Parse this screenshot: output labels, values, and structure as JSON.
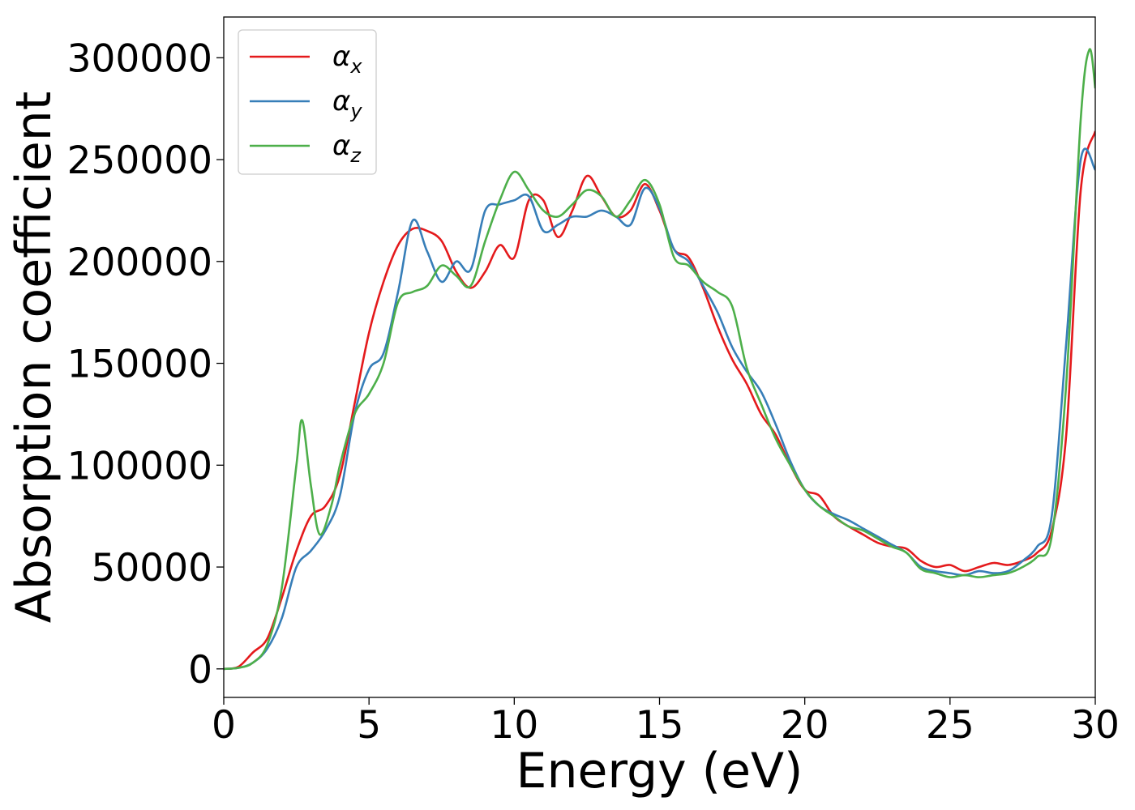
{
  "chart_data": {
    "type": "line",
    "xlabel": "Energy (eV)",
    "ylabel": "Absorption coefficient",
    "xlim": [
      0,
      30
    ],
    "ylim": [
      -14000,
      320000
    ],
    "xticks": [
      0,
      5,
      10,
      15,
      20,
      25,
      30
    ],
    "xtick_labels": [
      "0",
      "5",
      "10",
      "15",
      "20",
      "25",
      "30"
    ],
    "yticks": [
      0,
      50000,
      100000,
      150000,
      200000,
      250000,
      300000
    ],
    "ytick_labels": [
      "0",
      "50000",
      "100000",
      "150000",
      "200000",
      "250000",
      "300000"
    ],
    "grid": false,
    "legend_position": "top-left",
    "series": [
      {
        "name": "αx",
        "name_base": "α",
        "name_sub": "x",
        "color": "#e41a1c",
        "x": [
          0,
          0.5,
          1,
          1.5,
          2,
          2.5,
          3,
          3.5,
          4,
          4.5,
          5,
          5.5,
          6,
          6.5,
          7,
          7.5,
          8,
          8.5,
          9,
          9.5,
          10,
          10.5,
          11,
          11.5,
          12,
          12.5,
          13,
          13.5,
          14,
          14.5,
          15,
          15.5,
          16,
          16.5,
          17,
          17.5,
          18,
          18.5,
          19,
          19.5,
          20,
          20.5,
          21,
          21.5,
          22,
          22.5,
          23,
          23.5,
          24,
          24.5,
          25,
          25.5,
          26,
          26.5,
          27,
          27.5,
          28,
          28.5,
          29,
          29.5,
          30
        ],
        "y": [
          0,
          1000,
          8000,
          15000,
          35000,
          58000,
          75000,
          80000,
          95000,
          130000,
          165000,
          190000,
          208000,
          216000,
          215000,
          210000,
          195000,
          187000,
          195000,
          208000,
          202000,
          230000,
          230000,
          212000,
          225000,
          242000,
          232000,
          222000,
          225000,
          238000,
          225000,
          206000,
          202000,
          187000,
          168000,
          152000,
          140000,
          125000,
          115000,
          100000,
          88000,
          85000,
          75000,
          70000,
          66000,
          62000,
          60000,
          59000,
          53000,
          50000,
          51000,
          48000,
          50000,
          52000,
          51000,
          53000,
          57000,
          68000,
          115000,
          235000,
          264000
        ]
      },
      {
        "name": "αy",
        "name_base": "α",
        "name_sub": "y",
        "color": "#377eb8",
        "x": [
          0,
          0.5,
          1,
          1.5,
          2,
          2.5,
          3,
          3.5,
          4,
          4.5,
          5,
          5.5,
          6,
          6.5,
          7,
          7.5,
          8,
          8.5,
          9,
          9.5,
          10,
          10.5,
          11,
          11.5,
          12,
          12.5,
          13,
          13.5,
          14,
          14.5,
          15,
          15.5,
          16,
          16.5,
          17,
          17.5,
          18,
          18.5,
          19,
          19.5,
          20,
          20.5,
          21,
          21.5,
          22,
          22.5,
          23,
          23.5,
          24,
          24.5,
          25,
          25.5,
          26,
          26.5,
          27,
          27.5,
          28,
          28.5,
          29,
          29.5,
          30
        ],
        "y": [
          0,
          500,
          3000,
          10000,
          25000,
          50000,
          58000,
          68000,
          85000,
          125000,
          147000,
          155000,
          185000,
          220000,
          205000,
          190000,
          200000,
          196000,
          225000,
          228000,
          230000,
          232000,
          215000,
          218000,
          222000,
          222000,
          225000,
          222000,
          218000,
          236000,
          226000,
          206000,
          200000,
          188000,
          175000,
          158000,
          146000,
          136000,
          120000,
          102000,
          88000,
          80000,
          76000,
          73000,
          69000,
          65000,
          61000,
          57000,
          50000,
          48000,
          47000,
          46000,
          48000,
          47000,
          48000,
          53000,
          60000,
          75000,
          160000,
          250000,
          245000
        ]
      },
      {
        "name": "αz",
        "name_base": "α",
        "name_sub": "z",
        "color": "#4daf4a",
        "x": [
          0,
          0.5,
          1,
          1.5,
          2,
          2.5,
          2.7,
          3,
          3.3,
          3.7,
          4,
          4.5,
          5,
          5.5,
          6,
          6.5,
          7,
          7.5,
          8,
          8.5,
          9,
          9.5,
          10,
          10.5,
          11,
          11.5,
          12,
          12.5,
          13,
          13.5,
          14,
          14.5,
          15,
          15.5,
          16,
          16.5,
          17,
          17.5,
          18,
          18.5,
          19,
          19.5,
          20,
          20.5,
          21,
          21.5,
          22,
          22.5,
          23,
          23.5,
          24,
          24.5,
          25,
          25.5,
          26,
          26.5,
          27,
          27.5,
          28,
          28.5,
          29,
          29.5,
          29.8,
          30
        ],
        "y": [
          0,
          500,
          3000,
          12000,
          40000,
          100000,
          122000,
          90000,
          66000,
          80000,
          100000,
          125000,
          135000,
          150000,
          180000,
          185000,
          188000,
          198000,
          193000,
          188000,
          210000,
          230000,
          244000,
          235000,
          225000,
          222000,
          228000,
          235000,
          232000,
          222000,
          230000,
          240000,
          228000,
          202000,
          198000,
          190000,
          185000,
          178000,
          148000,
          130000,
          113000,
          100000,
          88000,
          80000,
          75000,
          70000,
          68000,
          64000,
          60000,
          57000,
          49000,
          47000,
          45000,
          46000,
          45000,
          46000,
          47000,
          50000,
          55000,
          65000,
          140000,
          270000,
          304000,
          285000
        ]
      }
    ]
  }
}
